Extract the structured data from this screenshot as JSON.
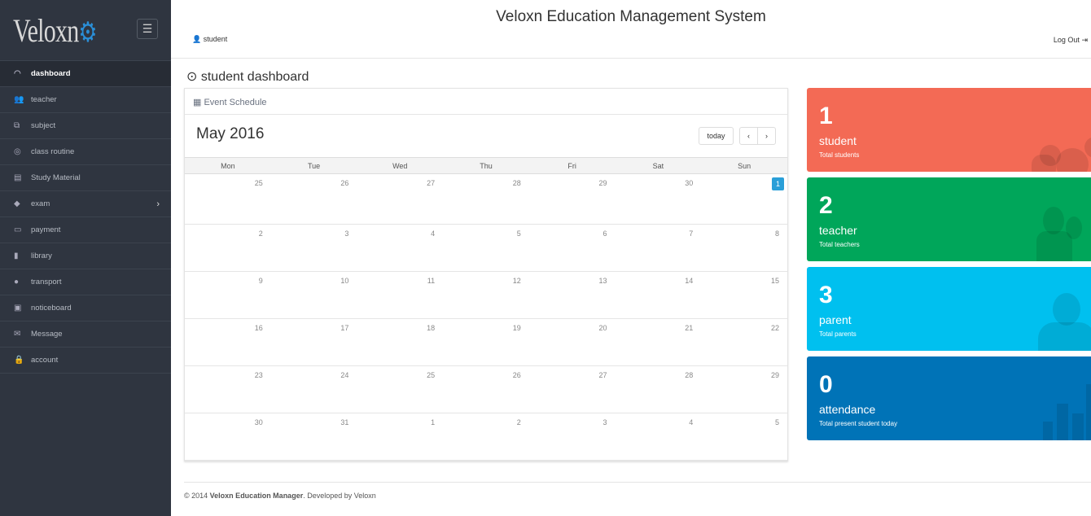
{
  "app": {
    "logo_text": "Veloxn",
    "title": "Veloxn Education Management System",
    "user": "student",
    "logout": "Log Out"
  },
  "sidebar": {
    "items": [
      {
        "label": "dashboard",
        "icon": "dashboard-icon",
        "glyph": "◠",
        "active": true
      },
      {
        "label": "teacher",
        "icon": "users-icon",
        "glyph": "👥"
      },
      {
        "label": "subject",
        "icon": "subject-icon",
        "glyph": "⧉"
      },
      {
        "label": "class routine",
        "icon": "routine-icon",
        "glyph": "◎"
      },
      {
        "label": "Study Material",
        "icon": "book-icon",
        "glyph": "▤"
      },
      {
        "label": "exam",
        "icon": "graduation-cap-icon",
        "glyph": "◆",
        "chevron": true
      },
      {
        "label": "payment",
        "icon": "credit-card-icon",
        "glyph": "▭"
      },
      {
        "label": "library",
        "icon": "library-icon",
        "glyph": "▮"
      },
      {
        "label": "transport",
        "icon": "map-marker-icon",
        "glyph": "●"
      },
      {
        "label": "noticeboard",
        "icon": "noticeboard-icon",
        "glyph": "▣"
      },
      {
        "label": "Message",
        "icon": "envelope-icon",
        "glyph": "✉"
      },
      {
        "label": "account",
        "icon": "lock-icon",
        "glyph": "🔒"
      }
    ]
  },
  "page": {
    "title": "student dashboard"
  },
  "calendar": {
    "panel_title": "Event Schedule",
    "month": "May 2016",
    "today_label": "today",
    "prev": "‹",
    "next": "›",
    "days": [
      "Mon",
      "Tue",
      "Wed",
      "Thu",
      "Fri",
      "Sat",
      "Sun"
    ],
    "weeks": [
      [
        "25",
        "26",
        "27",
        "28",
        "29",
        "30",
        "1"
      ],
      [
        "2",
        "3",
        "4",
        "5",
        "6",
        "7",
        "8"
      ],
      [
        "9",
        "10",
        "11",
        "12",
        "13",
        "14",
        "15"
      ],
      [
        "16",
        "17",
        "18",
        "19",
        "20",
        "21",
        "22"
      ],
      [
        "23",
        "24",
        "25",
        "26",
        "27",
        "28",
        "29"
      ],
      [
        "30",
        "31",
        "1",
        "2",
        "3",
        "4",
        "5"
      ]
    ],
    "today": "1"
  },
  "cards": [
    {
      "value": "1",
      "label": "student",
      "sub": "Total students",
      "color": "#f36a55"
    },
    {
      "value": "2",
      "label": "teacher",
      "sub": "Total teachers",
      "color": "#00a65a"
    },
    {
      "value": "3",
      "label": "parent",
      "sub": "Total parents",
      "color": "#00c0ef"
    },
    {
      "value": "0",
      "label": "attendance",
      "sub": "Total present student today",
      "color": "#0073b7"
    }
  ],
  "footer": {
    "prefix": "© 2014",
    "name": "Veloxn Education Manager",
    "mid": ". Developed by",
    "dev": "Veloxn"
  }
}
